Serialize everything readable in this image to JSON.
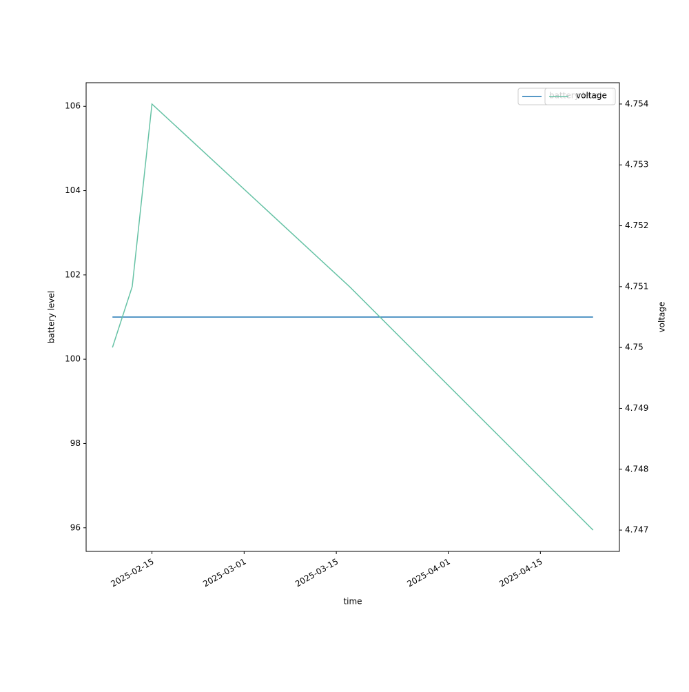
{
  "chart_data": {
    "type": "line",
    "x_label": "time",
    "y_label": "battery level",
    "y2_label": "voltage",
    "x": [
      "2025-02-09",
      "2025-02-12",
      "2025-02-15",
      "2025-03-17",
      "2025-04-23"
    ],
    "xlim": [
      "2025-02-05",
      "2025-04-27"
    ],
    "xticks": [
      "2025-02-15",
      "2025-03-01",
      "2025-03-15",
      "2025-04-01",
      "2025-04-15"
    ],
    "ylim": [
      95.44,
      106.56
    ],
    "yticks": [
      96,
      98,
      100,
      102,
      104,
      106
    ],
    "y2lim": [
      4.74665,
      4.75435
    ],
    "y2ticks": [
      4.747,
      4.748,
      4.749,
      4.75,
      4.751,
      4.752,
      4.753,
      4.754
    ],
    "legend": "upper right",
    "series": [
      {
        "name": "battery level",
        "color": "#1f77b4",
        "values": [
          101,
          101,
          101,
          101,
          101
        ]
      },
      {
        "name": "voltage",
        "color": "#66c2a5",
        "axis": "y2",
        "values": [
          4.75,
          4.751,
          4.754,
          4.751,
          4.747
        ]
      }
    ]
  }
}
